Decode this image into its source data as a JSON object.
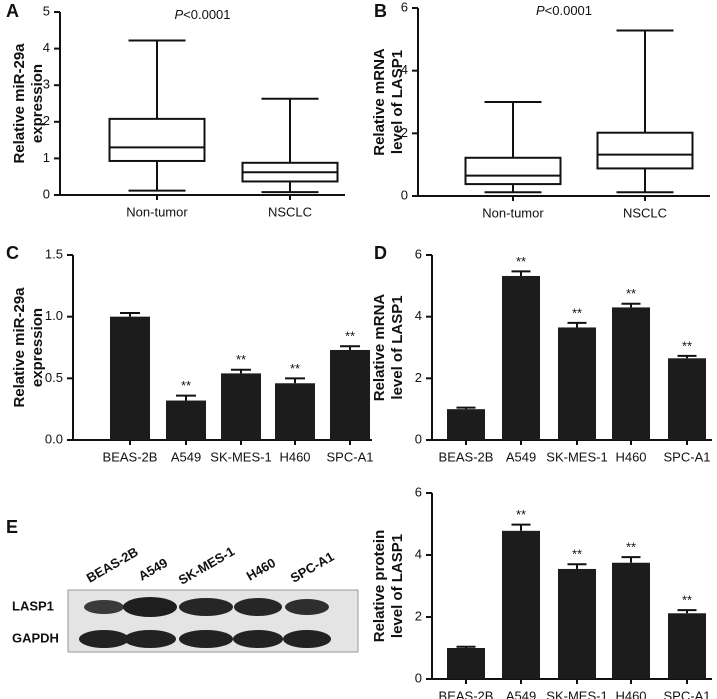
{
  "chart_data": [
    {
      "panel": "A",
      "type": "box",
      "ylabel": [
        "Relative miR-29a",
        "expression"
      ],
      "annotation": [
        "P",
        "<0.0001"
      ],
      "categories": [
        "Non-tumor",
        "NSCLC"
      ],
      "boxes": [
        {
          "min": 0.12,
          "q1": 0.93,
          "median": 1.3,
          "q3": 2.08,
          "max": 4.22
        },
        {
          "min": 0.08,
          "q1": 0.37,
          "median": 0.62,
          "q3": 0.88,
          "max": 2.63
        }
      ],
      "ylim": [
        0,
        5
      ],
      "yticks": [
        0,
        1,
        2,
        3,
        4,
        5
      ]
    },
    {
      "panel": "B",
      "type": "box",
      "ylabel": [
        "Relative mRNA",
        "level of LASP1"
      ],
      "annotation": [
        "P",
        "<0.0001"
      ],
      "categories": [
        "Non-tumor",
        "NSCLC"
      ],
      "boxes": [
        {
          "min": 0.12,
          "q1": 0.38,
          "median": 0.65,
          "q3": 1.22,
          "max": 3.0
        },
        {
          "min": 0.12,
          "q1": 0.88,
          "median": 1.32,
          "q3": 2.02,
          "max": 5.28
        }
      ],
      "ylim": [
        0,
        6
      ],
      "yticks": [
        0,
        2,
        4,
        6
      ]
    },
    {
      "panel": "C",
      "type": "bar",
      "ylabel": [
        "Relative miR-29a",
        "expression"
      ],
      "color": "#1c1c1c",
      "categories": [
        "BEAS-2B",
        "A549",
        "SK-MES-1",
        "H460",
        "SPC-A1"
      ],
      "values": [
        1.0,
        0.32,
        0.54,
        0.46,
        0.73
      ],
      "errors": [
        0.03,
        0.04,
        0.03,
        0.04,
        0.03
      ],
      "significance": [
        null,
        "**",
        "**",
        "**",
        "**"
      ],
      "ylim": [
        0,
        1.5
      ],
      "yticks": [
        {
          "value": 0,
          "label": "0.0"
        },
        0.5,
        {
          "value": 1,
          "label": "1.0"
        },
        1.5
      ]
    },
    {
      "panel": "D",
      "type": "bar",
      "ylabel": [
        "Relative mRNA",
        "level of LASP1"
      ],
      "color": "#1c1c1c",
      "categories": [
        "BEAS-2B",
        "A549",
        "SK-MES-1",
        "H460",
        "SPC-A1"
      ],
      "values": [
        1.0,
        5.32,
        3.65,
        4.3,
        2.65
      ],
      "errors": [
        0.05,
        0.15,
        0.15,
        0.12,
        0.08
      ],
      "significance": [
        null,
        "**",
        "**",
        "**",
        "**"
      ],
      "ylim": [
        0,
        6
      ],
      "yticks": [
        0,
        2,
        4,
        6
      ]
    },
    {
      "type": "bar",
      "ylabel": [
        "Relative protein",
        "level of LASP1"
      ],
      "color": "#1c1c1c",
      "categories": [
        "BEAS-2B",
        "A549",
        "SK-MES-1",
        "H460",
        "SPC-A1"
      ],
      "values": [
        1.0,
        4.78,
        3.55,
        3.75,
        2.12
      ],
      "errors": [
        0.04,
        0.2,
        0.15,
        0.18,
        0.1
      ],
      "significance": [
        null,
        "**",
        "**",
        "**",
        "**"
      ],
      "ylim": [
        0,
        6
      ],
      "yticks": [
        0,
        2,
        4,
        6
      ]
    }
  ],
  "blot": {
    "panel": "E",
    "lanes": [
      "BEAS-2B",
      "A549",
      "SK-MES-1",
      "H460",
      "SPC-A1"
    ],
    "rows": [
      "LASP1",
      "GAPDH"
    ]
  }
}
